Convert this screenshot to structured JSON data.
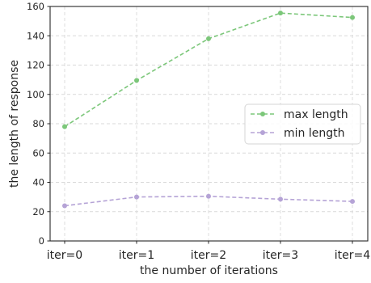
{
  "chart_data": {
    "type": "line",
    "categories": [
      "iter=0",
      "iter=1",
      "iter=2",
      "iter=3",
      "iter=4"
    ],
    "series": [
      {
        "name": "max length",
        "values": [
          78,
          109.5,
          138,
          155.5,
          152.5
        ],
        "color": "#7cc77a"
      },
      {
        "name": "min length",
        "values": [
          24,
          30,
          30.5,
          28.5,
          27
        ],
        "color": "#b5a3d6"
      }
    ],
    "xlabel": "the number of iterations",
    "ylabel": "the length of response",
    "ylim": [
      0,
      160
    ],
    "yticks": [
      "0",
      "20",
      "40",
      "60",
      "80",
      "100",
      "120",
      "140",
      "160"
    ],
    "grid": true,
    "grid_style": "dashed",
    "legend_position": "center-right",
    "line_style": "dashed"
  }
}
